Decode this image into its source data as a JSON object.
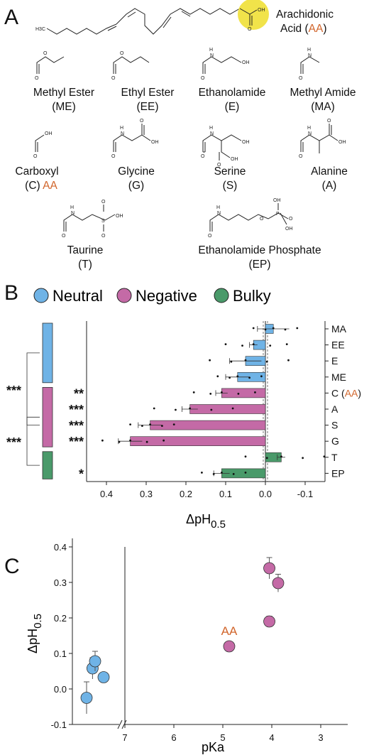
{
  "panel_labels": {
    "a": "A",
    "b": "B",
    "c": "C"
  },
  "molecules": {
    "arachidonic": {
      "name": "Arachidonic",
      "name2": "Acid (",
      "abbr": "AA",
      "close": ")"
    },
    "items": [
      {
        "name": "Methyl Ester",
        "abbr": "(ME)"
      },
      {
        "name": "Ethyl Ester",
        "abbr": "(EE)"
      },
      {
        "name": "Ethanolamide",
        "abbr": "(E)"
      },
      {
        "name": "Methyl Amide",
        "abbr": "(MA)"
      },
      {
        "name": "Carboxyl",
        "abbr": "(C)",
        "extra": "AA"
      },
      {
        "name": "Glycine",
        "abbr": "(G)"
      },
      {
        "name": "Serine",
        "abbr": "(S)"
      },
      {
        "name": "Alanine",
        "abbr": "(A)"
      },
      {
        "name": "Taurine",
        "abbr": "(T)"
      },
      {
        "name": "Ethanolamide Phosphate",
        "abbr": "(EP)"
      }
    ],
    "atoms": {
      "h3c": "H3C",
      "oh": "OH",
      "o": "O",
      "n": "N",
      "h": "H",
      "s": "S",
      "p": "P"
    }
  },
  "chart_data": [
    {
      "type": "bar",
      "orientation": "horizontal",
      "legend": [
        "Neutral",
        "Negative",
        "Bulky"
      ],
      "colors": {
        "Neutral": "#6fb3e6",
        "Negative": "#c46aa6",
        "Bulky": "#4a9a6a"
      },
      "categories": [
        "MA",
        "EE",
        "E",
        "ME",
        "C",
        "A",
        "S",
        "G",
        "T",
        "EP"
      ],
      "category_suffix": {
        "C": {
          "text": "(AA)",
          "aa": "AA"
        }
      },
      "groups": [
        "Neutral",
        "Neutral",
        "Neutral",
        "Neutral",
        "Negative",
        "Negative",
        "Negative",
        "Negative",
        "Bulky",
        "Bulky"
      ],
      "values": [
        -0.02,
        0.03,
        0.05,
        0.07,
        0.11,
        0.19,
        0.29,
        0.34,
        -0.04,
        0.11
      ],
      "errors": [
        0.04,
        0.01,
        0.04,
        0.03,
        0.015,
        0.02,
        0.03,
        0.03,
        0.01,
        0.02
      ],
      "stars": [
        "",
        "",
        "",
        "",
        "**",
        "***",
        "***",
        "***",
        "",
        "*"
      ],
      "group_stars": [
        "***",
        "***"
      ],
      "xlabel": "ΔpH",
      "xlabel_sub": "0.5",
      "xticks": [
        "0.4",
        "0.3",
        "0.2",
        "0.1",
        "0.0",
        "-0.1"
      ],
      "xlim": [
        0.45,
        -0.15
      ]
    },
    {
      "type": "scatter",
      "xlabel": "pKa",
      "ylabel": "ΔpH",
      "ylabel_sub": "0.5",
      "xticks": [
        "7",
        "6",
        "5",
        "4",
        "3"
      ],
      "yticks": [
        "0.4",
        "0.3",
        "0.2",
        "0.1",
        "0.0",
        "-0.1"
      ],
      "annotation": "AA",
      "points": [
        {
          "x": 7.45,
          "y": -0.025,
          "err": 0.045,
          "group": "Neutral"
        },
        {
          "x": 7.38,
          "y": 0.058,
          "err": 0.03,
          "group": "Neutral"
        },
        {
          "x": 7.35,
          "y": 0.078,
          "err": 0.028,
          "group": "Neutral"
        },
        {
          "x": 7.25,
          "y": 0.033,
          "err": 0.0,
          "group": "Neutral"
        },
        {
          "x": 4.87,
          "y": 0.12,
          "err": 0.0,
          "group": "Negative"
        },
        {
          "x": 4.05,
          "y": 0.19,
          "err": 0.015,
          "group": "Negative"
        },
        {
          "x": 4.05,
          "y": 0.34,
          "err": 0.03,
          "group": "Negative"
        },
        {
          "x": 3.87,
          "y": 0.298,
          "err": 0.025,
          "group": "Negative"
        }
      ]
    }
  ]
}
